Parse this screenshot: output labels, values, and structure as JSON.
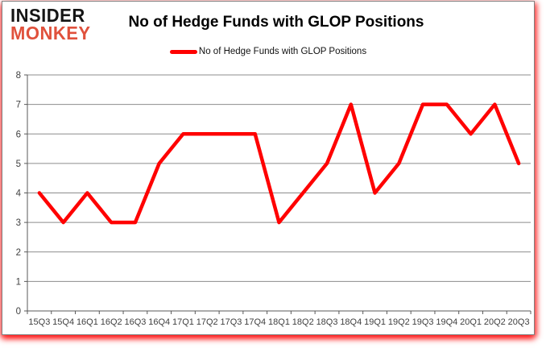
{
  "logo": {
    "line1": "INSIDER",
    "line2": "MONKEY",
    "line2_color": "#e0513c"
  },
  "header": {
    "title": "No of Hedge Funds with GLOP Positions"
  },
  "legend": {
    "label": "No of Hedge Funds with GLOP Positions",
    "marker_color": "#ff0000"
  },
  "chart_data": {
    "type": "line",
    "title": "No of Hedge Funds with GLOP Positions",
    "categories": [
      "15Q3",
      "15Q4",
      "16Q1",
      "16Q2",
      "16Q3",
      "16Q4",
      "17Q1",
      "17Q2",
      "17Q3",
      "17Q4",
      "18Q1",
      "18Q2",
      "18Q3",
      "18Q4",
      "19Q1",
      "19Q2",
      "19Q3",
      "19Q4",
      "20Q1",
      "20Q2",
      "20Q3"
    ],
    "series": [
      {
        "name": "No of Hedge Funds with GLOP Positions",
        "color": "#ff0000",
        "values": [
          4,
          3,
          4,
          3,
          3,
          5,
          6,
          6,
          6,
          6,
          3,
          4,
          5,
          7,
          4,
          5,
          7,
          7,
          6,
          7,
          5
        ]
      }
    ],
    "xlabel": "",
    "ylabel": "",
    "ylim": [
      0,
      8
    ],
    "yticks": [
      0,
      1,
      2,
      3,
      4,
      5,
      6,
      7,
      8
    ],
    "grid": true,
    "legend_position": "top"
  },
  "colors": {
    "line": "#ff0000",
    "grid": "#8c8c8c",
    "axis": "#595959",
    "tick_text": "#404040",
    "card_border": "#808080",
    "shadow_glow": "#ff0000"
  }
}
